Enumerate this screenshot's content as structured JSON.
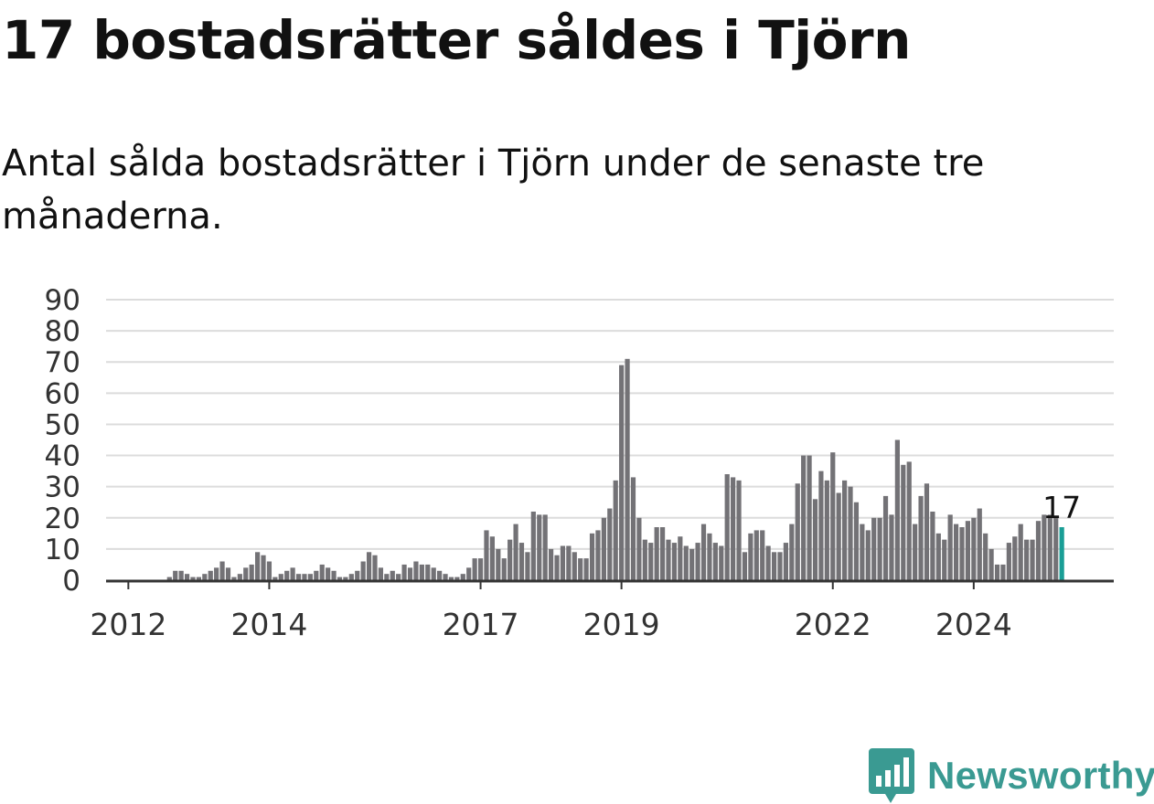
{
  "title": "17 bostadsrätter såldes i Tjörn",
  "subtitle": "Antal sålda bostadsrätter i Tjörn under de senaste tre månaderna.",
  "brand": {
    "name": "Newsworthy",
    "icon": "newsworthy-logo-icon",
    "color": "#3a9a92"
  },
  "chart_data": {
    "type": "bar",
    "title": "17 bostadsrätter såldes i Tjörn",
    "subtitle": "Antal sålda bostadsrätter i Tjörn under de senaste tre månaderna.",
    "xlabel": "",
    "ylabel": "",
    "ylim": [
      0,
      90
    ],
    "yticks": [
      "0",
      "10",
      "20",
      "30",
      "40",
      "50",
      "60",
      "70",
      "80",
      "90"
    ],
    "xticks": [
      "2012",
      "2014",
      "2017",
      "2019",
      "2022",
      "2024"
    ],
    "x_start": "2011-10",
    "grid": true,
    "bar_color": "#737276",
    "highlight_color": "#1a9e96",
    "highlight_last": true,
    "end_label": "17",
    "values": [
      0,
      0,
      0,
      0,
      0,
      0,
      0,
      0,
      0,
      0,
      1,
      3,
      3,
      2,
      1,
      1,
      2,
      3,
      4,
      6,
      4,
      1,
      2,
      4,
      5,
      9,
      8,
      6,
      1,
      2,
      3,
      4,
      2,
      2,
      2,
      3,
      5,
      4,
      3,
      1,
      1,
      2,
      3,
      6,
      9,
      8,
      4,
      2,
      3,
      2,
      5,
      4,
      6,
      5,
      5,
      4,
      3,
      2,
      1,
      1,
      2,
      4,
      7,
      7,
      16,
      14,
      10,
      7,
      13,
      18,
      12,
      9,
      22,
      21,
      21,
      10,
      8,
      11,
      11,
      9,
      7,
      7,
      15,
      16,
      20,
      23,
      32,
      69,
      71,
      33,
      20,
      13,
      12,
      17,
      17,
      13,
      12,
      14,
      11,
      10,
      12,
      18,
      15,
      12,
      11,
      34,
      33,
      32,
      9,
      15,
      16,
      16,
      11,
      9,
      9,
      12,
      18,
      31,
      40,
      40,
      26,
      35,
      32,
      41,
      28,
      32,
      30,
      25,
      18,
      16,
      20,
      20,
      27,
      21,
      45,
      37,
      38,
      18,
      27,
      31,
      22,
      15,
      13,
      21,
      18,
      17,
      19,
      20,
      23,
      15,
      10,
      5,
      5,
      12,
      14,
      18,
      13,
      13,
      19,
      21,
      21,
      20,
      17
    ]
  }
}
